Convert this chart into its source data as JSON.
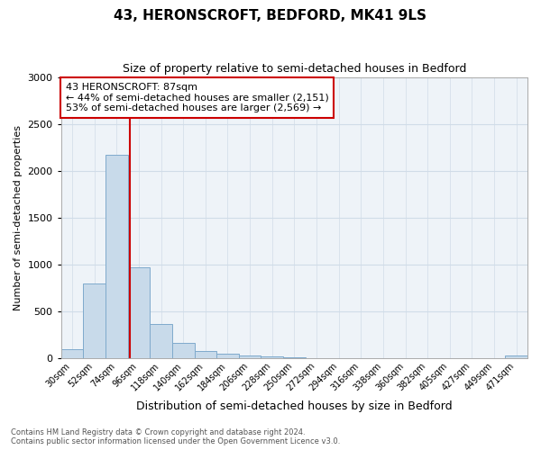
{
  "title": "43, HERONSCROFT, BEDFORD, MK41 9LS",
  "subtitle": "Size of property relative to semi-detached houses in Bedford",
  "xlabel": "Distribution of semi-detached houses by size in Bedford",
  "ylabel": "Number of semi-detached properties",
  "footnote1": "Contains HM Land Registry data © Crown copyright and database right 2024.",
  "footnote2": "Contains public sector information licensed under the Open Government Licence v3.0.",
  "annotation_line1": "43 HERONSCROFT: 87sqm",
  "annotation_line2": "← 44% of semi-detached houses are smaller (2,151)",
  "annotation_line3": "53% of semi-detached houses are larger (2,569) →",
  "property_size": 87,
  "bin_starts": [
    30,
    52,
    74,
    96,
    118,
    140,
    162,
    184,
    206,
    228,
    250,
    272,
    294,
    316,
    338,
    360,
    382,
    405,
    427,
    449,
    471
  ],
  "categories": [
    "30sqm",
    "52sqm",
    "74sqm",
    "96sqm",
    "118sqm",
    "140sqm",
    "162sqm",
    "184sqm",
    "206sqm",
    "228sqm",
    "250sqm",
    "272sqm",
    "294sqm",
    "316sqm",
    "338sqm",
    "360sqm",
    "382sqm",
    "405sqm",
    "427sqm",
    "449sqm",
    "471sqm"
  ],
  "values": [
    100,
    800,
    2175,
    970,
    370,
    165,
    80,
    50,
    35,
    20,
    10,
    7,
    5,
    3,
    2,
    2,
    2,
    1,
    1,
    1,
    30
  ],
  "bar_color": "#c8daea",
  "bar_edge_color": "#7faacc",
  "highlight_line_color": "#cc0000",
  "annotation_box_edge_color": "#cc0000",
  "ylim": [
    0,
    3000
  ],
  "yticks": [
    0,
    500,
    1000,
    1500,
    2000,
    2500,
    3000
  ],
  "grid_color": "#d0dce8",
  "background_color": "#ffffff",
  "plot_bg_color": "#eef3f8",
  "title_fontsize": 11,
  "subtitle_fontsize": 9,
  "xlabel_fontsize": 9,
  "ylabel_fontsize": 8
}
